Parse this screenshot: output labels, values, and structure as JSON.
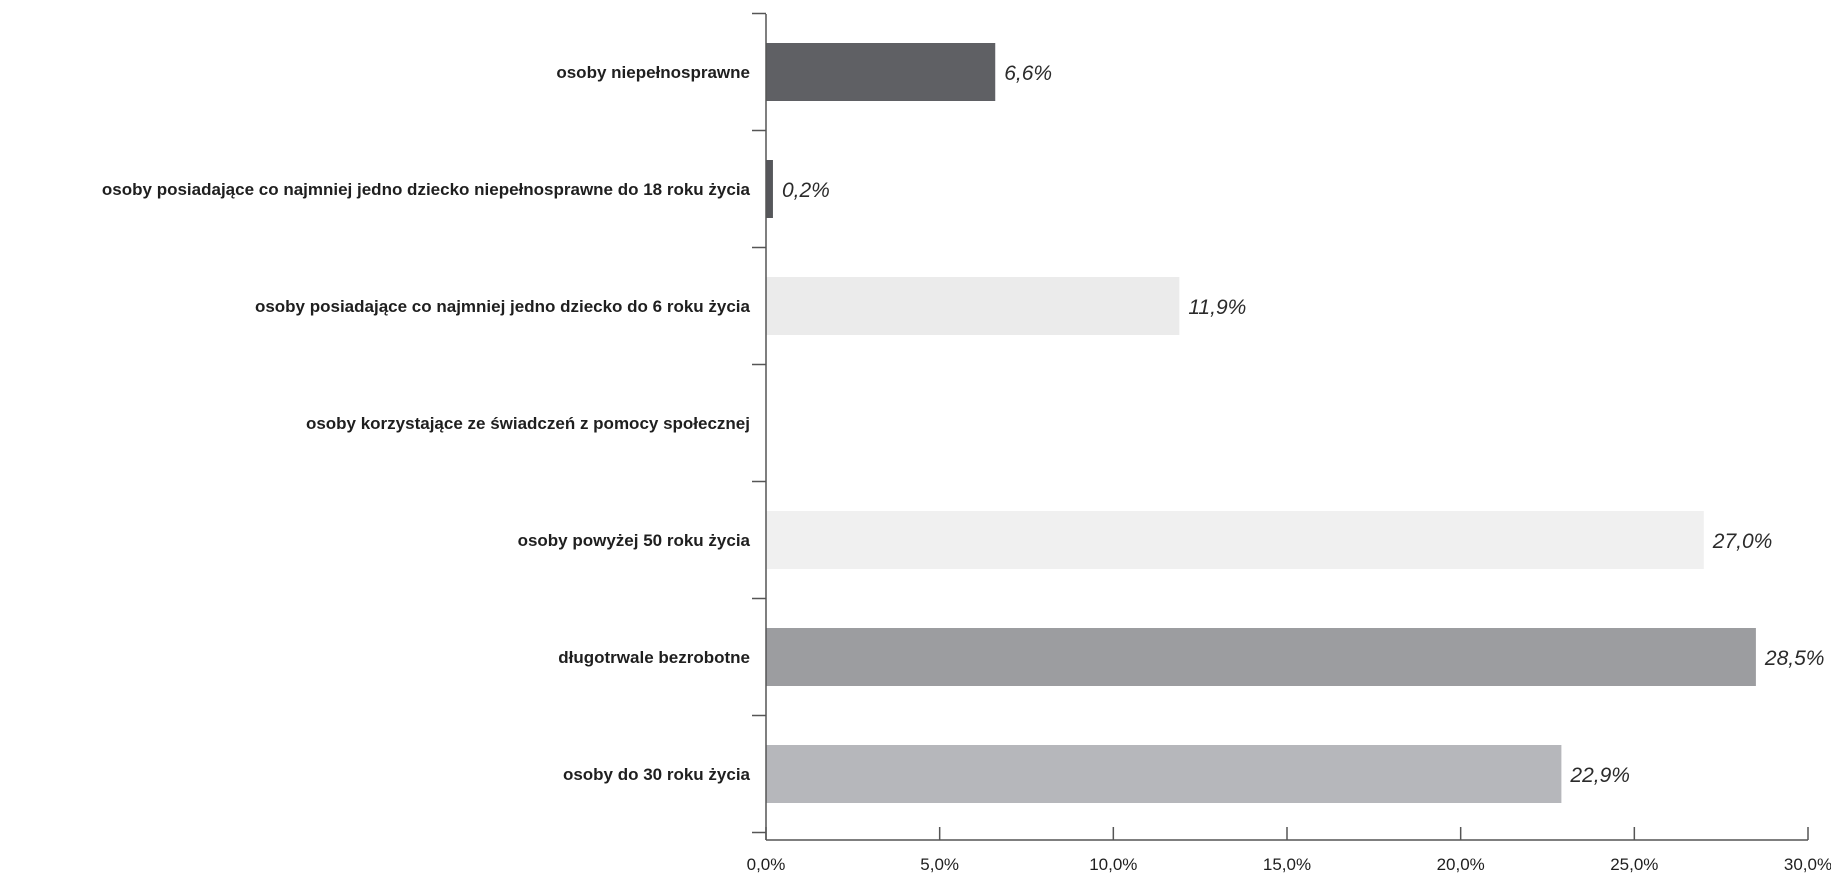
{
  "chart_data": {
    "type": "bar",
    "orientation": "horizontal",
    "title": "",
    "xlabel": "",
    "ylabel": "",
    "xlim": [
      0,
      30
    ],
    "grid": false,
    "categories": [
      "osoby niepełnosprawne",
      "osoby posiadające co najmniej jedno dziecko niepełnosprawne do 18 roku życia",
      "osoby posiadające co najmniej jedno dziecko do 6 roku życia",
      "osoby korzystające ze świadczeń z pomocy społecznej",
      "osoby powyżej 50 roku życia",
      "długotrwale bezrobotne",
      "osoby do 30 roku życia"
    ],
    "values": [
      6.6,
      0.2,
      11.9,
      null,
      27.0,
      28.5,
      22.9
    ],
    "value_labels": [
      "6,6%",
      "0,2%",
      "11,9%",
      "",
      "27,0%",
      "28,5%",
      "22,9%"
    ],
    "bar_colors": [
      "#5f6064",
      "#56575b",
      "#ebebeb",
      "#ffffff",
      "#f0f0f0",
      "#9c9da0",
      "#b6b7bb"
    ],
    "x_ticks": [
      0,
      5,
      10,
      15,
      20,
      25,
      30
    ],
    "x_tick_labels": [
      "0,0%",
      "5,0%",
      "10,0%",
      "15,0%",
      "20,0%",
      "25,0%",
      "30,0%"
    ]
  }
}
